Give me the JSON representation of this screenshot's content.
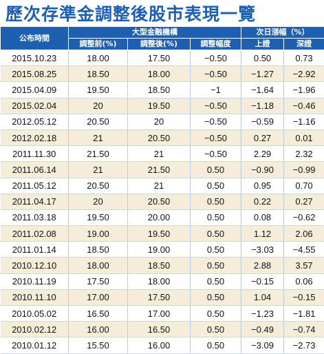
{
  "title": "歷次存準金調整後股市表現一覽",
  "header": {
    "date_col": "公布時間",
    "group_banks": "大型金融機構",
    "group_next_day": "次日漲幅（%）",
    "before": "調整前(%)",
    "after": "調整後(%)",
    "change": "調整幅度",
    "shanghai": "上證",
    "shenzhen": "深證"
  },
  "rows": [
    {
      "date": "2015.10.23",
      "before": "18.00",
      "after": "17.50",
      "change": "−0.50",
      "sh": "0.50",
      "sz": "0.73"
    },
    {
      "date": "2015.08.25",
      "before": "18.50",
      "after": "18.00",
      "change": "−0.50",
      "sh": "−1.27",
      "sz": "−2.92"
    },
    {
      "date": "2015.04.09",
      "before": "19.50",
      "after": "18.50",
      "change": "−1",
      "sh": "−1.64",
      "sz": "−1.96"
    },
    {
      "date": "2015.02.04",
      "before": "20",
      "after": "19.50",
      "change": "−0.50",
      "sh": "−1.18",
      "sz": "−0.46"
    },
    {
      "date": "2012.05.12",
      "before": "20.50",
      "after": "20",
      "change": "−0.50",
      "sh": "−0.59",
      "sz": "−1.16"
    },
    {
      "date": "2012.02.18",
      "before": "21",
      "after": "20.50",
      "change": "−0.50",
      "sh": "0.27",
      "sz": "0.01"
    },
    {
      "date": "2011.11.30",
      "before": "21.50",
      "after": "21",
      "change": "−0.50",
      "sh": "2.29",
      "sz": "2.32"
    },
    {
      "date": "2011.06.14",
      "before": "21",
      "after": "21.50",
      "change": "0.50",
      "sh": "−0.90",
      "sz": "−0.99"
    },
    {
      "date": "2011.05.12",
      "before": "20.50",
      "after": "21",
      "change": "0.50",
      "sh": "0.95",
      "sz": "0.70"
    },
    {
      "date": "2011.04.17",
      "before": "20",
      "after": "20.50",
      "change": "0.50",
      "sh": "0.22",
      "sz": "0.27"
    },
    {
      "date": "2011.03.18",
      "before": "19.50",
      "after": "20.00",
      "change": "0.50",
      "sh": "0.08",
      "sz": "−0.62"
    },
    {
      "date": "2011.02.08",
      "before": "19.00",
      "after": "19.50",
      "change": "0.50",
      "sh": "1.12",
      "sz": "2.06"
    },
    {
      "date": "2011.01.14",
      "before": "18.50",
      "after": "19.00",
      "change": "0.50",
      "sh": "−3.03",
      "sz": "−4.55"
    },
    {
      "date": "2010.12.10",
      "before": "18.00",
      "after": "18.50",
      "change": "0.50",
      "sh": "2.88",
      "sz": "3.57"
    },
    {
      "date": "2010.11.19",
      "before": "17.50",
      "after": "18.00",
      "change": "0.50",
      "sh": "−0.15",
      "sz": "0.06"
    },
    {
      "date": "2010.11.10",
      "before": "17.00",
      "after": "17.50",
      "change": "0.50",
      "sh": "1.04",
      "sz": "−0.15"
    },
    {
      "date": "2010.05.02",
      "before": "16.50",
      "after": "17.00",
      "change": "0.50",
      "sh": "−1.23",
      "sz": "−1.81"
    },
    {
      "date": "2010.02.12",
      "before": "16.00",
      "after": "16.50",
      "change": "0.50",
      "sh": "−0.49",
      "sz": "−0.74"
    },
    {
      "date": "2010.01.12",
      "before": "15.50",
      "after": "16.00",
      "change": "0.50",
      "sh": "−3.09",
      "sz": "−2.73"
    }
  ],
  "colors": {
    "header_bg": "#1d5fb0",
    "title": "#1d5fb0",
    "row_alt": "#f5edd9"
  }
}
